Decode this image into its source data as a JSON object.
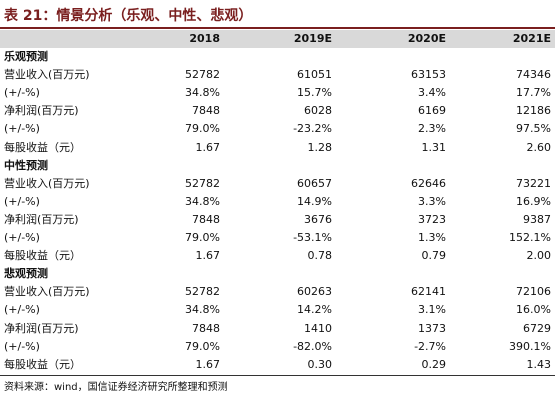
{
  "header": {
    "title": "表 21：情景分析（乐观、中性、悲观）"
  },
  "table": {
    "columns": [
      "2018",
      "2019E",
      "2020E",
      "2021E"
    ],
    "sections": [
      {
        "title": "乐观预测",
        "rows": [
          {
            "label": "营业收入(百万元)",
            "cells": [
              "52782",
              "61051",
              "63153",
              "74346"
            ]
          },
          {
            "label": "(+/-%)",
            "cells": [
              "34.8%",
              "15.7%",
              "3.4%",
              "17.7%"
            ]
          },
          {
            "label": "净利润(百万元)",
            "cells": [
              "7848",
              "6028",
              "6169",
              "12186"
            ]
          },
          {
            "label": "(+/-%)",
            "cells": [
              "79.0%",
              "-23.2%",
              "2.3%",
              "97.5%"
            ]
          },
          {
            "label": "每股收益（元）",
            "cells": [
              "1.67",
              "1.28",
              "1.31",
              "2.60"
            ]
          }
        ]
      },
      {
        "title": "中性预测",
        "rows": [
          {
            "label": "营业收入(百万元)",
            "cells": [
              "52782",
              "60657",
              "62646",
              "73221"
            ]
          },
          {
            "label": "(+/-%)",
            "cells": [
              "34.8%",
              "14.9%",
              "3.3%",
              "16.9%"
            ]
          },
          {
            "label": "净利润(百万元)",
            "cells": [
              "7848",
              "3676",
              "3723",
              "9387"
            ]
          },
          {
            "label": "(+/-%)",
            "cells": [
              "79.0%",
              "-53.1%",
              "1.3%",
              "152.1%"
            ]
          },
          {
            "label": "每股收益（元）",
            "cells": [
              "1.67",
              "0.78",
              "0.79",
              "2.00"
            ]
          }
        ]
      },
      {
        "title": "悲观预测",
        "rows": [
          {
            "label": "营业收入(百万元)",
            "cells": [
              "52782",
              "60263",
              "62141",
              "72106"
            ]
          },
          {
            "label": "(+/-%)",
            "cells": [
              "34.8%",
              "14.2%",
              "3.1%",
              "16.0%"
            ]
          },
          {
            "label": "净利润(百万元)",
            "cells": [
              "7848",
              "1410",
              "1373",
              "6729"
            ]
          },
          {
            "label": "(+/-%)",
            "cells": [
              "79.0%",
              "-82.0%",
              "-2.7%",
              "390.1%"
            ]
          },
          {
            "label": "每股收益（元）",
            "cells": [
              "1.67",
              "0.30",
              "0.29",
              "1.43"
            ]
          }
        ]
      }
    ]
  },
  "footer": {
    "source": "资料来源：wind，国信证券经济研究所整理和预测"
  }
}
